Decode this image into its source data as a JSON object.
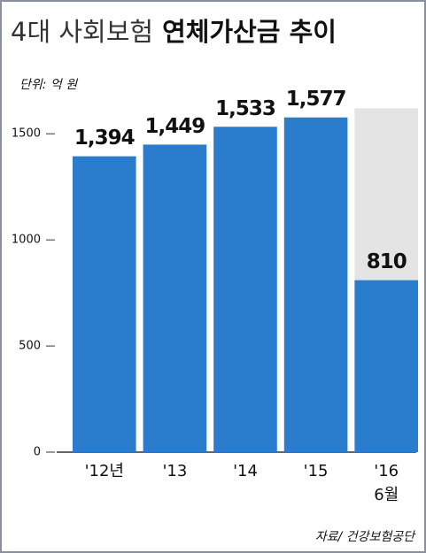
{
  "chart_data": {
    "type": "bar",
    "title": "4대 사회보험",
    "title_emphasis": "연체가산금 추이",
    "unit": "단위: 억 원",
    "source": "자료/ 건강보험공단",
    "categories": [
      [
        "'12년"
      ],
      [
        "'13"
      ],
      [
        "'14"
      ],
      [
        "'15"
      ],
      [
        "'16",
        "6월"
      ]
    ],
    "values": [
      1394,
      1449,
      1533,
      1577,
      810
    ],
    "value_labels": [
      "1,394",
      "1,449",
      "1,533",
      "1,577",
      "810"
    ],
    "color": "#2a7ccd",
    "background_values": [
      null,
      null,
      null,
      null,
      1620
    ],
    "background_color": "#e4e4e4",
    "ylim": [
      0,
      1630
    ],
    "yticks": [
      0,
      500,
      1000,
      1500
    ]
  }
}
